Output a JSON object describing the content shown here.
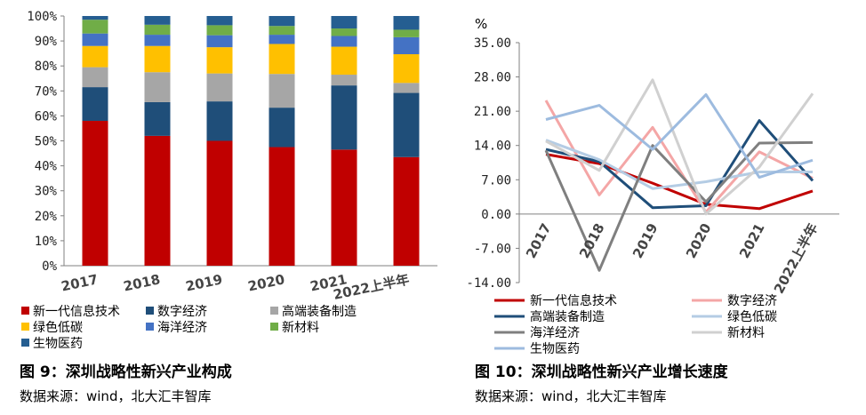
{
  "chart_data": [
    {
      "type": "bar",
      "stacked": true,
      "categories": [
        "2017",
        "2018",
        "2019",
        "2020",
        "2021",
        "2022上半年"
      ],
      "yticks": [
        "0%",
        "10%",
        "20%",
        "30%",
        "40%",
        "50%",
        "60%",
        "70%",
        "80%",
        "90%",
        "100%"
      ],
      "ylim": [
        0,
        100
      ],
      "legend_position": "bottom",
      "series": [
        {
          "name": "新一代信息技术",
          "color": "#c00000",
          "values": [
            58,
            52,
            50,
            47.5,
            46.5,
            43.5
          ]
        },
        {
          "name": "数字经济",
          "color": "#1f4e79",
          "values": [
            13.5,
            13.5,
            15.8,
            15.8,
            25.7,
            25.7
          ]
        },
        {
          "name": "高端装备制造",
          "color": "#a6a6a6",
          "values": [
            8,
            12,
            11.2,
            13.5,
            4.3,
            4
          ]
        },
        {
          "name": "绿色低碳",
          "color": "#ffc000",
          "values": [
            8.5,
            10.5,
            10.5,
            12,
            11.2,
            11.5
          ]
        },
        {
          "name": "海洋经济",
          "color": "#4472c4",
          "values": [
            5,
            4.5,
            4.8,
            3.7,
            4.3,
            6.8
          ]
        },
        {
          "name": "新材料",
          "color": "#70ad47",
          "values": [
            5.5,
            4,
            4,
            3.5,
            3,
            3
          ]
        },
        {
          "name": "生物医药",
          "color": "#255e91",
          "values": [
            1.5,
            3.5,
            3.7,
            4,
            5,
            5.5
          ]
        }
      ],
      "caption": "图 9：深圳战略性新兴产业构成",
      "source": "数据来源：wind，北大汇丰智库"
    },
    {
      "type": "line",
      "unit": "%",
      "x": [
        "2017",
        "2018",
        "2019",
        "2020",
        "2021",
        "2022上半年"
      ],
      "yticks": [
        "35.00",
        "28.00",
        "21.00",
        "14.00",
        "7.00",
        "0.00",
        "-7.00",
        "-14.00"
      ],
      "ylim": [
        -14,
        35
      ],
      "grid": false,
      "legend_position": "bottom",
      "series": [
        {
          "name": "新一代信息技术",
          "color": "#c00000",
          "values": [
            12.2,
            10.3,
            6.3,
            2,
            1.1,
            4.7
          ]
        },
        {
          "name": "数字经济",
          "color": "#f4a6a6",
          "values": [
            23.2,
            3.9,
            17.7,
            0.4,
            12.7,
            7.3
          ]
        },
        {
          "name": "高端装备制造",
          "color": "#1f4e79",
          "values": [
            13.2,
            10.7,
            1.3,
            1.7,
            19.1,
            6.8
          ]
        },
        {
          "name": "绿色低碳",
          "color": "#b4cce4",
          "values": [
            15.1,
            11.1,
            5.2,
            6.6,
            8.6,
            8.6
          ]
        },
        {
          "name": "海洋经济",
          "color": "#7f7f7f",
          "values": [
            13,
            -11.5,
            14,
            2.5,
            14.5,
            14.6
          ]
        },
        {
          "name": "新材料",
          "color": "#d0d0d0",
          "values": [
            14.9,
            8.9,
            27.4,
            0,
            9.6,
            24.6
          ]
        },
        {
          "name": "生物医药",
          "color": "#9dbbdf",
          "values": [
            19.3,
            22.2,
            13.2,
            24.4,
            7.5,
            11
          ]
        }
      ],
      "caption": "图 10：深圳战略性新兴产业增长速度",
      "source": "数据来源：wind，北大汇丰智库"
    }
  ]
}
